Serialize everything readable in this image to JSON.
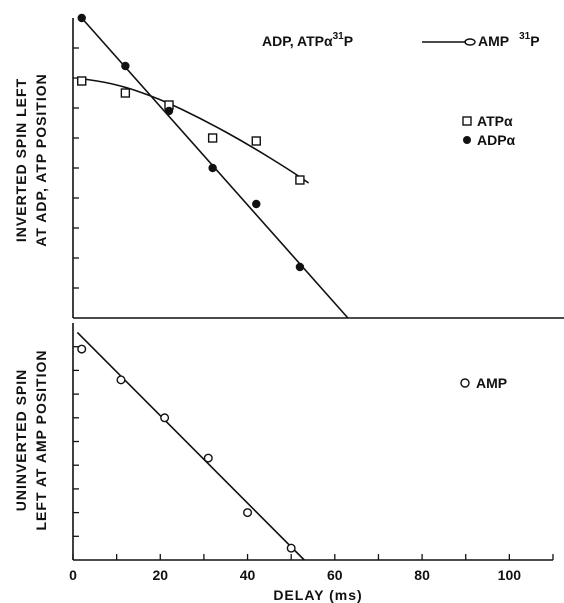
{
  "chart_data": [
    {
      "type": "scatter",
      "panel": "top",
      "title": "ADP, ATPα³¹P ——⊖ AMP ³¹P",
      "title_parts": {
        "left": "ADP,  ATPα",
        "left_sup": "31",
        "left_p": "P",
        "right": "AMP",
        "right_sup": "31",
        "right_p": "P"
      },
      "ylabel_lines": [
        "INVERTED SPIN LEFT",
        "AT ADP, ATP POSITION"
      ],
      "xlim": [
        0,
        110
      ],
      "ylim": [
        0,
        10
      ],
      "y_ticks": [
        1,
        2,
        3,
        4,
        5,
        6,
        7,
        8,
        9
      ],
      "legend_position": "right",
      "series": [
        {
          "name": "ATPα",
          "marker": "open-square",
          "points": [
            [
              2,
              7.9
            ],
            [
              12,
              7.5
            ],
            [
              22,
              7.1
            ],
            [
              32,
              6.0
            ],
            [
              42,
              5.9
            ],
            [
              52,
              4.6
            ]
          ],
          "fit": "curve",
          "fit_points": [
            [
              1,
              8.0
            ],
            [
              10,
              7.8
            ],
            [
              20,
              7.3
            ],
            [
              30,
              6.6
            ],
            [
              40,
              5.8
            ],
            [
              50,
              4.9
            ],
            [
              54,
              4.5
            ]
          ]
        },
        {
          "name": "ADPα",
          "marker": "filled-circle",
          "points": [
            [
              2,
              10.0
            ],
            [
              12,
              8.4
            ],
            [
              22,
              6.9
            ],
            [
              32,
              5.0
            ],
            [
              42,
              3.8
            ],
            [
              52,
              1.7
            ]
          ],
          "fit": "line",
          "fit_points": [
            [
              2,
              10.0
            ],
            [
              63,
              0
            ]
          ]
        }
      ]
    },
    {
      "type": "scatter",
      "panel": "bottom",
      "ylabel_lines": [
        "UNINVERTED SPIN",
        "LEFT AT AMP POSITION"
      ],
      "xlabel": "DELAY (ms)",
      "xlim": [
        0,
        110
      ],
      "ylim": [
        0,
        10
      ],
      "x_ticks": [
        0,
        20,
        40,
        60,
        80,
        100
      ],
      "y_ticks": [
        1,
        2,
        3,
        4,
        5,
        6,
        7,
        8,
        9
      ],
      "legend_position": "right",
      "series": [
        {
          "name": "AMP",
          "marker": "open-circle",
          "points": [
            [
              2,
              8.9
            ],
            [
              11,
              7.6
            ],
            [
              21,
              6.0
            ],
            [
              31,
              4.3
            ],
            [
              40,
              2.0
            ],
            [
              50,
              0.5
            ]
          ],
          "fit": "line",
          "fit_points": [
            [
              1,
              9.6
            ],
            [
              53,
              0
            ]
          ]
        }
      ]
    }
  ]
}
